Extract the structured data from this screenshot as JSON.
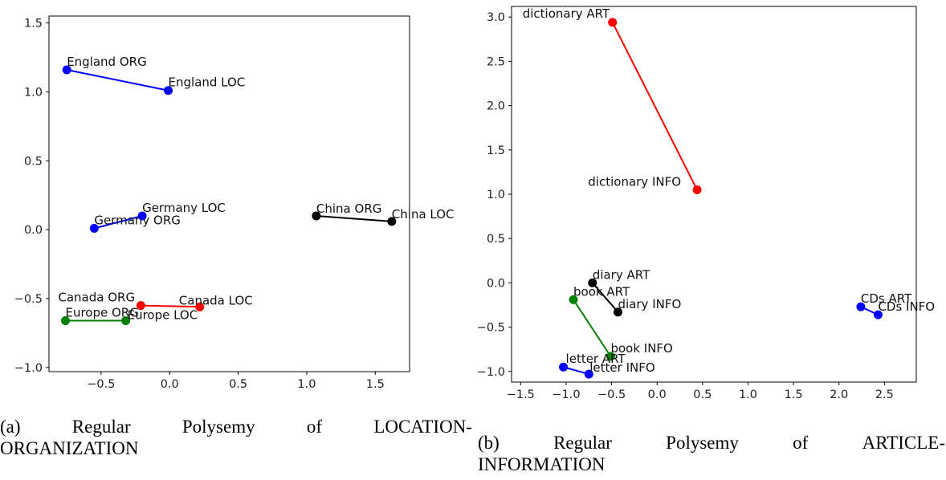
{
  "chart_data": [
    {
      "type": "scatter",
      "title": "",
      "xlabel": "",
      "ylabel": "",
      "xlim": [
        -0.88,
        1.75
      ],
      "ylim": [
        -1.03,
        1.55
      ],
      "xticks": [
        -0.5,
        0.0,
        0.5,
        1.0,
        1.5
      ],
      "xtick_labels": [
        "−0.5",
        "0.0",
        "0.5",
        "1.0",
        "1.5"
      ],
      "yticks": [
        -1.0,
        -0.5,
        0.0,
        0.5,
        1.0,
        1.5
      ],
      "ytick_labels": [
        "−1.0",
        "−0.5",
        "0.0",
        "0.5",
        "1.0",
        "1.5"
      ],
      "grid": false,
      "pairs": [
        {
          "color": "#0000ff",
          "points": [
            {
              "label": "England ORG",
              "x": -0.75,
              "y": 1.16
            },
            {
              "label": "England LOC",
              "x": -0.01,
              "y": 1.01
            }
          ]
        },
        {
          "color": "#0000ff",
          "points": [
            {
              "label": "Germany ORG",
              "x": -0.55,
              "y": 0.01
            },
            {
              "label": "Germany LOC",
              "x": -0.2,
              "y": 0.1
            }
          ]
        },
        {
          "color": "#000000",
          "points": [
            {
              "label": "China ORG",
              "x": 1.07,
              "y": 0.1
            },
            {
              "label": "China LOC",
              "x": 1.62,
              "y": 0.06
            }
          ]
        },
        {
          "color": "#ff0000",
          "points": [
            {
              "label": "Canada ORG",
              "x": -0.21,
              "y": -0.55
            },
            {
              "label": "Canada LOC",
              "x": 0.22,
              "y": -0.56
            }
          ]
        },
        {
          "color": "#008000",
          "points": [
            {
              "label": "Europe ORG",
              "x": -0.76,
              "y": -0.66
            },
            {
              "label": "Europe LOC",
              "x": -0.32,
              "y": -0.66
            }
          ]
        }
      ]
    },
    {
      "type": "scatter",
      "title": "",
      "xlabel": "",
      "ylabel": "",
      "xlim": [
        -1.6,
        2.85
      ],
      "ylim": [
        -1.12,
        3.12
      ],
      "xticks": [
        -1.5,
        -1.0,
        -0.5,
        0.0,
        0.5,
        1.0,
        1.5,
        2.0,
        2.5
      ],
      "xtick_labels": [
        "−1.5",
        "−1.0",
        "−0.5",
        "0.0",
        "0.5",
        "1.0",
        "1.5",
        "2.0",
        "2.5"
      ],
      "yticks": [
        -1.0,
        -0.5,
        0.0,
        0.5,
        1.0,
        1.5,
        2.0,
        2.5,
        3.0
      ],
      "ytick_labels": [
        "−1.0",
        "−0.5",
        "0.0",
        "0.5",
        "1.0",
        "1.5",
        "2.0",
        "2.5",
        "3.0"
      ],
      "grid": false,
      "pairs": [
        {
          "color": "#ff0000",
          "points": [
            {
              "label": "dictionary ART",
              "x": -0.49,
              "y": 2.94
            },
            {
              "label": "dictionary INFO",
              "x": 0.44,
              "y": 1.05
            }
          ]
        },
        {
          "color": "#000000",
          "points": [
            {
              "label": "diary ART",
              "x": -0.71,
              "y": 0.0
            },
            {
              "label": "diary INFO",
              "x": -0.43,
              "y": -0.33
            }
          ]
        },
        {
          "color": "#008000",
          "points": [
            {
              "label": "book ART",
              "x": -0.92,
              "y": -0.19
            },
            {
              "label": "book INFO",
              "x": -0.51,
              "y": -0.83
            }
          ]
        },
        {
          "color": "#0000ff",
          "points": [
            {
              "label": "letter ART",
              "x": -1.03,
              "y": -0.95
            },
            {
              "label": "letter INFO",
              "x": -0.75,
              "y": -1.03
            }
          ]
        },
        {
          "color": "#0000ff",
          "points": [
            {
              "label": "CDs ART",
              "x": 2.24,
              "y": -0.27
            },
            {
              "label": "CDs INFO",
              "x": 2.43,
              "y": -0.36
            }
          ]
        }
      ]
    }
  ],
  "captions": [
    {
      "label": "(a)",
      "words": [
        "Regular",
        "Polysemy",
        "of",
        "LOCATION-"
      ],
      "line2": "ORGANIZATION"
    },
    {
      "label": "(b)",
      "words": [
        "Regular",
        "Polysemy",
        "of",
        "ARTICLE-"
      ],
      "line2": "INFORMATION"
    }
  ]
}
